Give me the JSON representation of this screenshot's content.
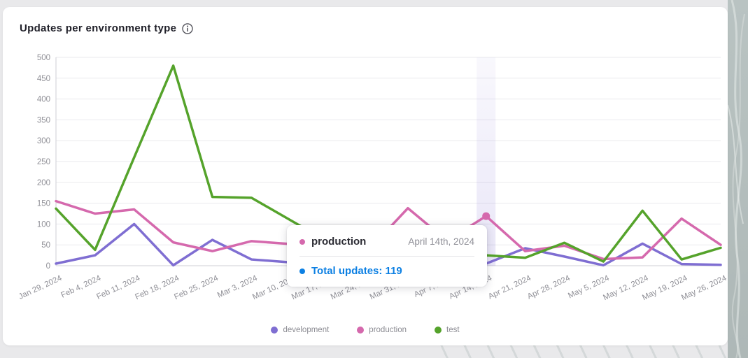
{
  "card": {
    "title": "Updates per environment type"
  },
  "chart_data": {
    "type": "line",
    "title": "Updates per environment type",
    "x": [
      "Jan 29, 2024",
      "Feb 4, 2024",
      "Feb 11, 2024",
      "Feb 18, 2024",
      "Feb 25, 2024",
      "Mar 3, 2024",
      "Mar 10, 2024",
      "Mar 17, 2024",
      "Mar 24, 2024",
      "Mar 31, 2024",
      "Apr 7, 2024",
      "Apr 14, 2024",
      "Apr 21, 2024",
      "Apr 28, 2024",
      "May 5, 2024",
      "May 12, 2024",
      "May 19, 2024",
      "May 26, 2024"
    ],
    "series": [
      {
        "name": "development",
        "color": "#7f6ed2",
        "values": [
          5,
          25,
          100,
          1,
          62,
          15,
          8,
          6,
          10,
          8,
          4,
          5,
          42,
          22,
          1,
          53,
          4,
          2
        ]
      },
      {
        "name": "production",
        "color": "#d569ad",
        "values": [
          155,
          125,
          135,
          56,
          35,
          59,
          52,
          45,
          38,
          138,
          60,
          119,
          35,
          48,
          16,
          20,
          113,
          50
        ]
      },
      {
        "name": "test",
        "color": "#55a32b",
        "values": [
          137,
          38,
          260,
          480,
          165,
          163,
          109,
          55,
          35,
          30,
          20,
          25,
          19,
          55,
          10,
          132,
          15,
          43
        ]
      }
    ],
    "ylim": [
      0,
      500
    ],
    "ytick_step": 50,
    "grid": true,
    "legend_position": "bottom",
    "highlight_index": 11,
    "active_marker": {
      "series": "production",
      "x": "Apr 14, 2024",
      "value": 119
    }
  },
  "tooltip": {
    "series_label": "production",
    "series_color": "#d569ad",
    "date": "April 14th, 2024",
    "total_text": "Total updates: 119",
    "total_color": "#0d80e3"
  },
  "colors": {
    "page_background": "#e9e9eb",
    "card_background": "#ffffff",
    "grid_line": "#eaeaee",
    "axis_line": "#cfcfd5",
    "tick_text": "#8f8f96",
    "highlight_band": "#7f6ed2"
  }
}
